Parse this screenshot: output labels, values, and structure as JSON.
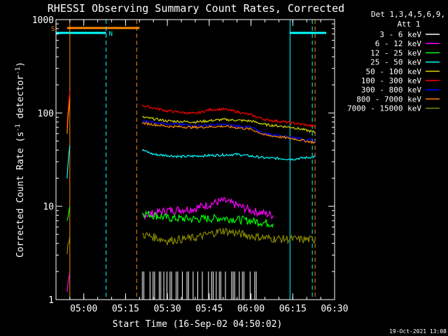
{
  "chart_data": {
    "type": "line",
    "title": "RHESSI Observing Summary Count Rates, Corrected",
    "xlabel": "Start Time (16-Sep-02 04:50:02)",
    "ylabel": "Corrected Count Rate (s",
    "ylabel_sup1": "-1",
    "ylabel_mid": " detector",
    "ylabel_sup2": "-1",
    "ylabel_end": ")",
    "y_scale": "log",
    "ylim": [
      1,
      1000
    ],
    "y_ticks": [
      {
        "v": 1,
        "label": "1"
      },
      {
        "v": 10,
        "label": "10"
      },
      {
        "v": 100,
        "label": "100"
      },
      {
        "v": 1000,
        "label": "1000"
      }
    ],
    "xlim": [
      "04:50:02",
      "06:30:00"
    ],
    "x_ticks": [
      {
        "t": "05:00",
        "label": "05:00"
      },
      {
        "t": "05:15",
        "label": "05:15"
      },
      {
        "t": "05:30",
        "label": "05:30"
      },
      {
        "t": "05:45",
        "label": "05:45"
      },
      {
        "t": "06:00",
        "label": "06:00"
      },
      {
        "t": "06:15",
        "label": "06:15"
      },
      {
        "t": "06:30",
        "label": "06:30"
      }
    ],
    "legend": {
      "placement": "right",
      "header1": "Det 1,3,4,5,6,9,",
      "header2": "Att 1",
      "entries": [
        {
          "label": "3 - 6 keV",
          "color": "#ffffff"
        },
        {
          "label": "6 - 12 keV",
          "color": "#ff00ff"
        },
        {
          "label": "12 - 25 keV",
          "color": "#00ff00"
        },
        {
          "label": "25 - 50 keV",
          "color": "#00ffff"
        },
        {
          "label": "50 - 100 keV",
          "color": "#d4d400"
        },
        {
          "label": "100 - 300 keV",
          "color": "#ff0000"
        },
        {
          "label": "300 - 800 keV",
          "color": "#0000ff"
        },
        {
          "label": "800 - 7000 keV",
          "color": "#ff8800"
        },
        {
          "label": "7000 - 15000 keV",
          "color": "#888800"
        }
      ]
    },
    "series": [
      {
        "name": "3 - 6 keV",
        "color": "#ffffff",
        "segments": [],
        "spikes": {
          "t0": "05:21",
          "t1": "06:02",
          "low": 1,
          "high": 2
        }
      },
      {
        "name": "6 - 12 keV",
        "color": "#ff00ff",
        "segments": [
          [
            [
              "04:54",
              1.1
            ],
            [
              "04:55",
              1.9
            ]
          ],
          [
            [
              "05:21",
              8.0
            ],
            [
              "05:30",
              9.0
            ],
            [
              "05:40",
              9.5
            ],
            [
              "05:50",
              11.5
            ],
            [
              "06:00",
              9.0
            ],
            [
              "06:08",
              8.0
            ]
          ]
        ]
      },
      {
        "name": "12 - 25 keV",
        "color": "#00ff00",
        "segments": [
          [
            [
              "04:54",
              7.0
            ],
            [
              "04:55",
              10.0
            ]
          ],
          [
            [
              "05:21",
              8.5
            ],
            [
              "05:30",
              7.5
            ],
            [
              "05:40",
              7.3
            ],
            [
              "05:50",
              7.5
            ],
            [
              "06:00",
              7.0
            ],
            [
              "06:08",
              6.5
            ]
          ]
        ]
      },
      {
        "name": "25 - 50 keV",
        "color": "#00ffff",
        "segments": [
          [
            [
              "04:54",
              20
            ],
            [
              "04:55",
              45
            ]
          ],
          [
            [
              "05:21",
              40
            ],
            [
              "05:25",
              36
            ],
            [
              "05:35",
              34
            ],
            [
              "05:45",
              35
            ],
            [
              "05:55",
              36
            ],
            [
              "06:05",
              33
            ],
            [
              "06:15",
              32
            ],
            [
              "06:23",
              34
            ]
          ]
        ]
      },
      {
        "name": "50 - 100 keV",
        "color": "#d4d400",
        "segments": [
          [
            [
              "05:21",
              90
            ],
            [
              "05:30",
              82
            ],
            [
              "05:40",
              80
            ],
            [
              "05:50",
              85
            ],
            [
              "06:00",
              82
            ],
            [
              "06:05",
              75
            ],
            [
              "06:15",
              70
            ],
            [
              "06:23",
              62
            ]
          ]
        ]
      },
      {
        "name": "100 - 300 keV",
        "color": "#ff0000",
        "segments": [
          [
            [
              "04:54",
              70
            ],
            [
              "04:55",
              170
            ]
          ],
          [
            [
              "05:21",
              120
            ],
            [
              "05:30",
              105
            ],
            [
              "05:40",
              98
            ],
            [
              "05:45",
              108
            ],
            [
              "05:50",
              110
            ],
            [
              "05:55",
              103
            ],
            [
              "06:00",
              95
            ],
            [
              "06:05",
              85
            ],
            [
              "06:15",
              78
            ],
            [
              "06:23",
              72
            ]
          ]
        ]
      },
      {
        "name": "300 - 800 keV",
        "color": "#0000ff",
        "segments": [
          [
            [
              "05:21",
              82
            ],
            [
              "05:30",
              77
            ],
            [
              "05:40",
              73
            ],
            [
              "05:50",
              75
            ],
            [
              "06:00",
              70
            ],
            [
              "06:05",
              60
            ],
            [
              "06:15",
              55
            ],
            [
              "06:23",
              50
            ]
          ]
        ]
      },
      {
        "name": "800 - 7000 keV",
        "color": "#ff8800",
        "segments": [
          [
            [
              "04:54",
              60
            ],
            [
              "04:55",
              140
            ]
          ],
          [
            [
              "05:21",
              78
            ],
            [
              "05:30",
              72
            ],
            [
              "05:40",
              70
            ],
            [
              "05:50",
              72
            ],
            [
              "06:00",
              67
            ],
            [
              "06:05",
              58
            ],
            [
              "06:15",
              53
            ],
            [
              "06:23",
              48
            ]
          ]
        ]
      },
      {
        "name": "7000 - 15000 keV",
        "color": "#888800",
        "segments": [
          [
            [
              "04:54",
              3.0
            ],
            [
              "04:55",
              5.0
            ]
          ],
          [
            [
              "05:21",
              5.0
            ],
            [
              "05:30",
              4.3
            ],
            [
              "05:40",
              4.6
            ],
            [
              "05:50",
              5.5
            ],
            [
              "06:00",
              4.8
            ],
            [
              "06:08",
              4.5
            ],
            [
              "06:23",
              4.4
            ]
          ]
        ]
      }
    ],
    "flag_bars": [
      {
        "label": "S",
        "color": "#ff8800",
        "t0": "04:54",
        "t1": "05:20"
      },
      {
        "label": "N",
        "color": "#00ffff",
        "t0": "04:50",
        "t1": "05:08"
      },
      {
        "label": "",
        "color": "#00ffff",
        "t0": "06:14",
        "t1": "06:30"
      }
    ],
    "vlines": [
      {
        "t": "04:55",
        "color": "#ff8800",
        "style": "solid"
      },
      {
        "t": "05:08",
        "color": "#00ffff",
        "style": "dashed"
      },
      {
        "t": "05:19",
        "color": "#ff8800",
        "style": "dashed"
      },
      {
        "t": "06:14",
        "color": "#00ffff",
        "style": "solid"
      },
      {
        "t": "06:22",
        "color": "#00ffff",
        "style": "dashed"
      },
      {
        "t": "06:23",
        "color": "#ff8800",
        "style": "dashed"
      }
    ],
    "footer": "19-Oct-2021 13:08"
  }
}
